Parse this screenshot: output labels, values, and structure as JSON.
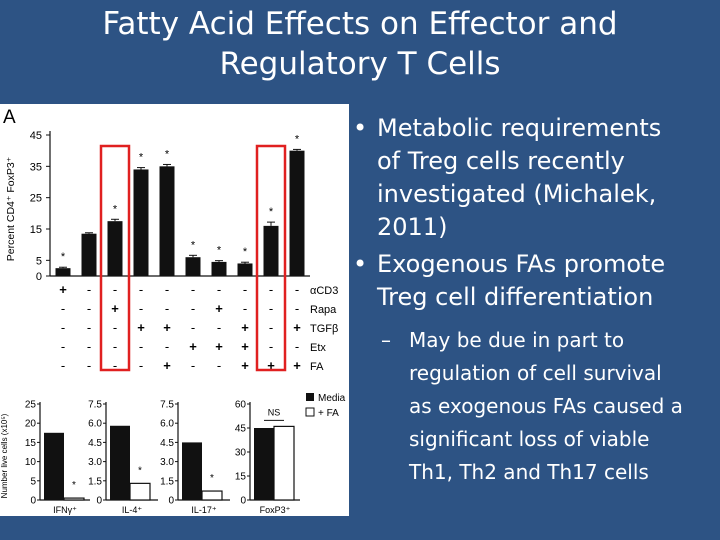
{
  "slide": {
    "title_line1": "Fatty Acid Effects on Effector and",
    "title_line2": "Regulatory T Cells",
    "bullets": [
      {
        "text_lines": [
          "Metabolic requirements",
          "of Treg cells recently",
          "investigated (Michalek,",
          "2011)"
        ]
      },
      {
        "text_lines": [
          "Exogenous FAs promote",
          "Treg cell differentiation"
        ]
      }
    ],
    "sub_bullet": {
      "dash": "–",
      "text_lines": [
        "May be due in part to",
        "regulation of cell survival",
        "as exogenous FAs caused a",
        "significant loss of viable",
        "Th1, Th2 and Th17 cells"
      ]
    },
    "bullet_char": "•"
  },
  "colors": {
    "background": "#2d5384",
    "highlight": "#e02020",
    "bar": "#111111",
    "text": "#ffffff"
  },
  "chart_data": [
    {
      "type": "bar",
      "panel_label": "A",
      "ylabel": "Percent CD4⁺ FoxP3⁺",
      "ylim": [
        0,
        45
      ],
      "yticks": [
        0,
        5,
        15,
        25,
        35,
        45
      ],
      "values": [
        2.5,
        13.5,
        17.5,
        34,
        35,
        6,
        4.5,
        4,
        16,
        40
      ],
      "errors": [
        0.3,
        0.3,
        0.6,
        0.6,
        0.6,
        0.6,
        0.4,
        0.4,
        1.2,
        0.4
      ],
      "significance": [
        "*",
        "",
        "*",
        "*",
        "*",
        "*",
        "*",
        "*",
        "*",
        "*"
      ],
      "highlighted_bars": [
        2,
        8
      ],
      "condition_rows": [
        {
          "label": "αCD3",
          "marks": [
            "+",
            "-",
            "-",
            "-",
            "-",
            "-",
            "-",
            "-",
            "-",
            "-"
          ]
        },
        {
          "label": "Rapa",
          "marks": [
            "-",
            "-",
            "+",
            "-",
            "-",
            "-",
            "+",
            "-",
            "-",
            "-"
          ]
        },
        {
          "label": "TGFβ",
          "marks": [
            "-",
            "-",
            "-",
            "+",
            "+",
            "-",
            "-",
            "+",
            "-",
            "+"
          ]
        },
        {
          "label": "Etx",
          "marks": [
            "-",
            "-",
            "-",
            "-",
            "-",
            "+",
            "+",
            "+",
            "-",
            "-"
          ]
        },
        {
          "label": "FA",
          "marks": [
            "-",
            "-",
            "-",
            "-",
            "+",
            "-",
            "-",
            "+",
            "+",
            "+"
          ]
        }
      ]
    },
    {
      "type": "bar",
      "ylabel": "Number live cells (x10⁵)",
      "legend": [
        "Media",
        "+ FA"
      ],
      "legend_position": "top-right",
      "categories": [
        "IFNγ⁺",
        "IL-4⁺",
        "IL-17⁺",
        "FoxP3⁺"
      ],
      "panels": [
        {
          "ylim": [
            0,
            25
          ],
          "yticks": [
            0,
            5,
            10,
            15,
            20,
            25
          ],
          "tick_labels": [
            "0",
            "5",
            "10",
            "15",
            "20",
            "25"
          ],
          "values": [
            {
              "media": 17.5,
              "fa": 0.5
            }
          ],
          "significance": "*"
        },
        {
          "ylim": [
            0,
            7.5
          ],
          "yticks": [
            0,
            1.5,
            3,
            4.5,
            6,
            7.5
          ],
          "tick_labels": [
            "0",
            "1.5",
            "3.0",
            "4.5",
            "6.0",
            "7.5"
          ],
          "values": [
            {
              "media": 5.8,
              "fa": 1.3
            }
          ],
          "significance": "*"
        },
        {
          "ylim": [
            0,
            7.5
          ],
          "yticks": [
            0,
            1.5,
            3,
            4.5,
            6,
            7.5
          ],
          "tick_labels": [
            "0",
            "1.5",
            "3.0",
            "4.5",
            "6.0",
            "7.5"
          ],
          "values": [
            {
              "media": 4.5,
              "fa": 0.7
            }
          ],
          "significance": "*"
        },
        {
          "ylim": [
            0,
            60
          ],
          "yticks": [
            0,
            15,
            30,
            45,
            60
          ],
          "tick_labels": [
            "0",
            "15",
            "30",
            "45",
            "60"
          ],
          "values": [
            {
              "media": 45,
              "fa": 46
            }
          ],
          "significance": "NS"
        }
      ]
    }
  ]
}
